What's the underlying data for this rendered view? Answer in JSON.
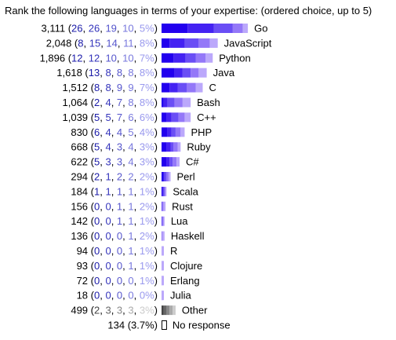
{
  "title": "Rank the following languages in terms of your expertise: (ordered choice, up to 5)",
  "colors": {
    "rank1": "#2200ee",
    "rank2": "#4422f2",
    "rank3": "#6a4ef5",
    "rank4": "#9478f8",
    "rank5": "#bba8fb",
    "rank_text": [
      "#1a1aa8",
      "#3333bb",
      "#5555cc",
      "#7777dd",
      "#9999ee"
    ],
    "other": [
      "#444444",
      "#666666",
      "#888888",
      "#aaaaaa",
      "#cccccc"
    ],
    "no_response_border": "#000000"
  },
  "chart_data": {
    "type": "bar",
    "stacked": true,
    "title": "Rank the following languages in terms of your expertise: (ordered choice, up to 5)",
    "series": [
      {
        "values": [
          26,
          8,
          12,
          13,
          8,
          2,
          5,
          6,
          5,
          5,
          2,
          1,
          0,
          0,
          0,
          0,
          0,
          0,
          0,
          2
        ]
      },
      {
        "values": [
          26,
          15,
          12,
          8,
          8,
          4,
          5,
          4,
          4,
          3,
          1,
          1,
          0,
          0,
          0,
          0,
          0,
          0,
          0,
          3
        ]
      },
      {
        "values": [
          19,
          14,
          10,
          8,
          9,
          7,
          7,
          4,
          3,
          3,
          2,
          1,
          1,
          1,
          0,
          0,
          0,
          0,
          0,
          3
        ]
      },
      {
        "values": [
          10,
          11,
          10,
          8,
          9,
          8,
          6,
          5,
          4,
          4,
          2,
          1,
          1,
          1,
          1,
          1,
          1,
          0,
          0,
          3
        ]
      },
      {
        "values": [
          5,
          8,
          7,
          8,
          7,
          8,
          6,
          4,
          3,
          3,
          2,
          1,
          2,
          1,
          2,
          1,
          1,
          1,
          0,
          3
        ]
      }
    ],
    "rows": [
      {
        "name": "Go",
        "total": "3,111",
        "ranks": [
          "26",
          "26",
          "19",
          "10",
          "5%"
        ]
      },
      {
        "name": "JavaScript",
        "total": "2,048",
        "ranks": [
          "8",
          "15",
          "14",
          "11",
          "8%"
        ]
      },
      {
        "name": "Python",
        "total": "1,896",
        "ranks": [
          "12",
          "12",
          "10",
          "10",
          "7%"
        ]
      },
      {
        "name": "Java",
        "total": "1,618",
        "ranks": [
          "13",
          "8",
          "8",
          "8",
          "8%"
        ]
      },
      {
        "name": "C",
        "total": "1,512",
        "ranks": [
          "8",
          "8",
          "9",
          "9",
          "7%"
        ]
      },
      {
        "name": "Bash",
        "total": "1,064",
        "ranks": [
          "2",
          "4",
          "7",
          "8",
          "8%"
        ]
      },
      {
        "name": "C++",
        "total": "1,039",
        "ranks": [
          "5",
          "5",
          "7",
          "6",
          "6%"
        ]
      },
      {
        "name": "PHP",
        "total": "830",
        "ranks": [
          "6",
          "4",
          "4",
          "5",
          "4%"
        ]
      },
      {
        "name": "Ruby",
        "total": "668",
        "ranks": [
          "5",
          "4",
          "3",
          "4",
          "3%"
        ]
      },
      {
        "name": "C#",
        "total": "622",
        "ranks": [
          "5",
          "3",
          "3",
          "4",
          "3%"
        ]
      },
      {
        "name": "Perl",
        "total": "294",
        "ranks": [
          "2",
          "1",
          "2",
          "2",
          "2%"
        ]
      },
      {
        "name": "Scala",
        "total": "184",
        "ranks": [
          "1",
          "1",
          "1",
          "1",
          "1%"
        ]
      },
      {
        "name": "Rust",
        "total": "156",
        "ranks": [
          "0",
          "0",
          "1",
          "1",
          "2%"
        ]
      },
      {
        "name": "Lua",
        "total": "142",
        "ranks": [
          "0",
          "0",
          "1",
          "1",
          "1%"
        ]
      },
      {
        "name": "Haskell",
        "total": "136",
        "ranks": [
          "0",
          "0",
          "0",
          "1",
          "2%"
        ]
      },
      {
        "name": "R",
        "total": "94",
        "ranks": [
          "0",
          "0",
          "0",
          "1",
          "1%"
        ]
      },
      {
        "name": "Clojure",
        "total": "93",
        "ranks": [
          "0",
          "0",
          "0",
          "1",
          "1%"
        ]
      },
      {
        "name": "Erlang",
        "total": "72",
        "ranks": [
          "0",
          "0",
          "0",
          "0",
          "1%"
        ]
      },
      {
        "name": "Julia",
        "total": "18",
        "ranks": [
          "0",
          "0",
          "0",
          "0",
          "0%"
        ]
      },
      {
        "name": "Other",
        "total": "499",
        "ranks": [
          "2",
          "3",
          "3",
          "3",
          "3%"
        ]
      }
    ],
    "no_response": {
      "name": "No response",
      "total": "134",
      "percent": "(3.7%)",
      "value": 3.7
    }
  }
}
